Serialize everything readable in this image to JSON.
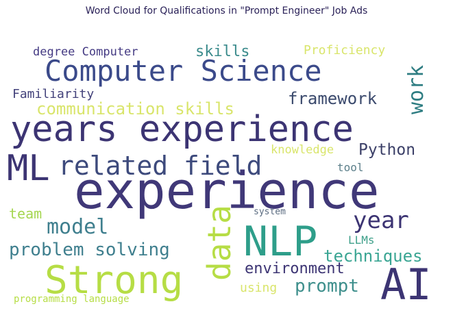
{
  "title": "Word Cloud for Qualifications in \"Prompt Engineer\" Job Ads",
  "words": {
    "degree_computer": {
      "text": "degree Computer",
      "color": "#443a83"
    },
    "skills": {
      "text": "skills",
      "color": "#3b8b8c"
    },
    "proficiency": {
      "text": "Proficiency",
      "color": "#d9e56b"
    },
    "work": {
      "text": "work",
      "color": "#2e7d82"
    },
    "computer_science": {
      "text": "Computer Science",
      "color": "#3b4a8a"
    },
    "familiarity": {
      "text": "Familiarity",
      "color": "#43427b"
    },
    "framework": {
      "text": "framework",
      "color": "#3b4a6d"
    },
    "communication_skills": {
      "text": "communication skills",
      "color": "#d9e56b"
    },
    "years_experience": {
      "text": "years experience",
      "color": "#3c3473"
    },
    "ml": {
      "text": "ML",
      "color": "#3c3473"
    },
    "related_field": {
      "text": "related field",
      "color": "#3d4a7c"
    },
    "knowledge": {
      "text": "knowledge",
      "color": "#d9e56b"
    },
    "python": {
      "text": "Python",
      "color": "#3c4068"
    },
    "tool": {
      "text": "tool",
      "color": "#5c7f8a"
    },
    "experience": {
      "text": "experience",
      "color": "#403878"
    },
    "team": {
      "text": "team",
      "color": "#a5d651"
    },
    "model": {
      "text": "model",
      "color": "#3f7f8e"
    },
    "system": {
      "text": "system",
      "color": "#5a6b80"
    },
    "data": {
      "text": "data",
      "color": "#b6dd45"
    },
    "nlp": {
      "text": "NLP",
      "color": "#2e9e8a"
    },
    "year": {
      "text": "year",
      "color": "#3c3473"
    },
    "problem_solving": {
      "text": "problem solving",
      "color": "#3f7f8e"
    },
    "llms": {
      "text": "LLMs",
      "color": "#3fa08a"
    },
    "techniques": {
      "text": "techniques",
      "color": "#3aa593"
    },
    "environment": {
      "text": "environment",
      "color": "#3c3473"
    },
    "strong": {
      "text": "Strong",
      "color": "#b6dd45"
    },
    "using": {
      "text": "using",
      "color": "#d9e56b"
    },
    "prompt": {
      "text": "prompt",
      "color": "#3e8f8c"
    },
    "ai": {
      "text": "AI",
      "color": "#3c3473"
    },
    "programming_language": {
      "text": "programming language",
      "color": "#b6dd45"
    }
  }
}
